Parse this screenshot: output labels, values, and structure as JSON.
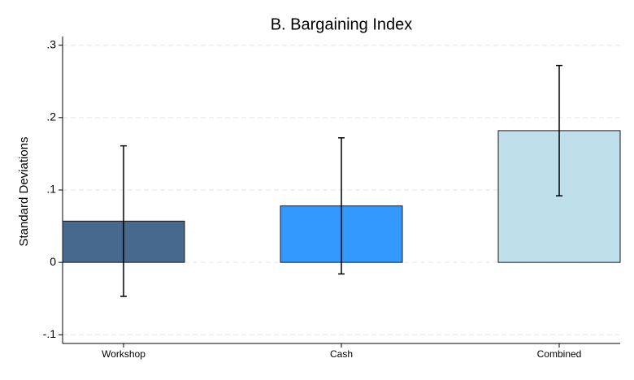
{
  "chart_data": {
    "type": "bar",
    "title": "B. Bargaining Index",
    "y_label": "Standard Deviations",
    "categories": [
      "Workshop",
      "Cash",
      "Combined"
    ],
    "values": [
      0.057,
      0.078,
      0.182
    ],
    "errors": [
      0.104,
      0.094,
      0.09
    ],
    "colors": [
      "#46698d",
      "#3399ff",
      "#bfe0ea"
    ],
    "ylim": [
      -0.112,
      0.312
    ],
    "yticks": [
      {
        "value": -0.1,
        "label": "-.1"
      },
      0,
      {
        "value": 0.1,
        "label": ".1"
      },
      {
        "value": 0.2,
        "label": ".2"
      },
      {
        "value": 0.3,
        "label": ".3"
      }
    ],
    "grid": true
  }
}
